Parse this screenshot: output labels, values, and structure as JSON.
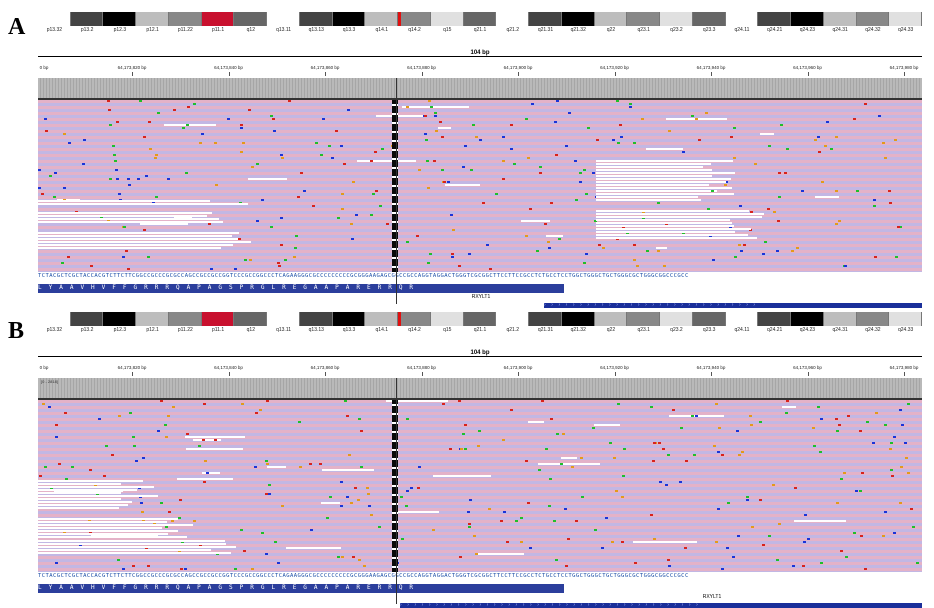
{
  "panels": [
    {
      "letter": "A",
      "span": "104 bp",
      "coverage_label": "",
      "gene": "RXYLT1"
    },
    {
      "letter": "B",
      "span": "104 bp",
      "coverage_label": "[0 - 2818]",
      "gene": "RXYLT1"
    }
  ],
  "cytobands": [
    "p13.32",
    "p13.2",
    "p12.3",
    "p12.1",
    "p11.22",
    "p11.1",
    "q12",
    "q13.11",
    "q13.13",
    "q13.3",
    "q14.1",
    "q14.2",
    "q15",
    "q21.1",
    "q21.2",
    "q21.31",
    "q21.32",
    "q22",
    "q23.1",
    "q23.2",
    "q23.3",
    "q24.11",
    "q24.21",
    "q24.23",
    "q24.31",
    "q24.32",
    "q24.33"
  ],
  "ruler": {
    "left_label": "0 bp",
    "ticks": [
      "64,173,820 bp",
      "64,173,840 bp",
      "64,173,860 bp",
      "64,173,880 bp",
      "64,173,900 bp",
      "64,173,920 bp",
      "64,173,940 bp",
      "64,173,960 bp",
      "64,173,980 bp"
    ]
  },
  "reference_sequence": "TCTACGCTCGCTACCACGTCTTCTTCGGCCGCCCGCGCCAGCCGCCGCCGGTCCCGCCGGCCCTCAGAAGGGCGCCCCCCCCCGCGGGAAGAGCGGCCGCCAGGTAGGACTGGGTCGCGGCTTCCTTCCGCCTCTGCCTCCTGGCTGGGCTGCTGGGCGCTGGGCGGCCCGCC",
  "amino_acids": [
    "L",
    "Y",
    "A",
    "A",
    "V",
    "H",
    "V",
    "F",
    "F",
    "G",
    "R",
    "R",
    "R",
    "Q",
    "A",
    "P",
    "A",
    "G",
    "S",
    "P",
    "R",
    "G",
    "L",
    "R",
    "E",
    "G",
    "A",
    "A",
    "P",
    "A",
    "R",
    "E",
    "R",
    "R",
    "Q",
    "R"
  ],
  "colors": {
    "forward_read": "#e4b2c8",
    "reverse_read": "#c2b7e4",
    "mismatch_a": "#1fbf2a",
    "mismatch_c": "#1a34d8",
    "mismatch_g": "#e39a1a",
    "mismatch_t": "#d8231c",
    "gene": "#1a2f9a"
  }
}
